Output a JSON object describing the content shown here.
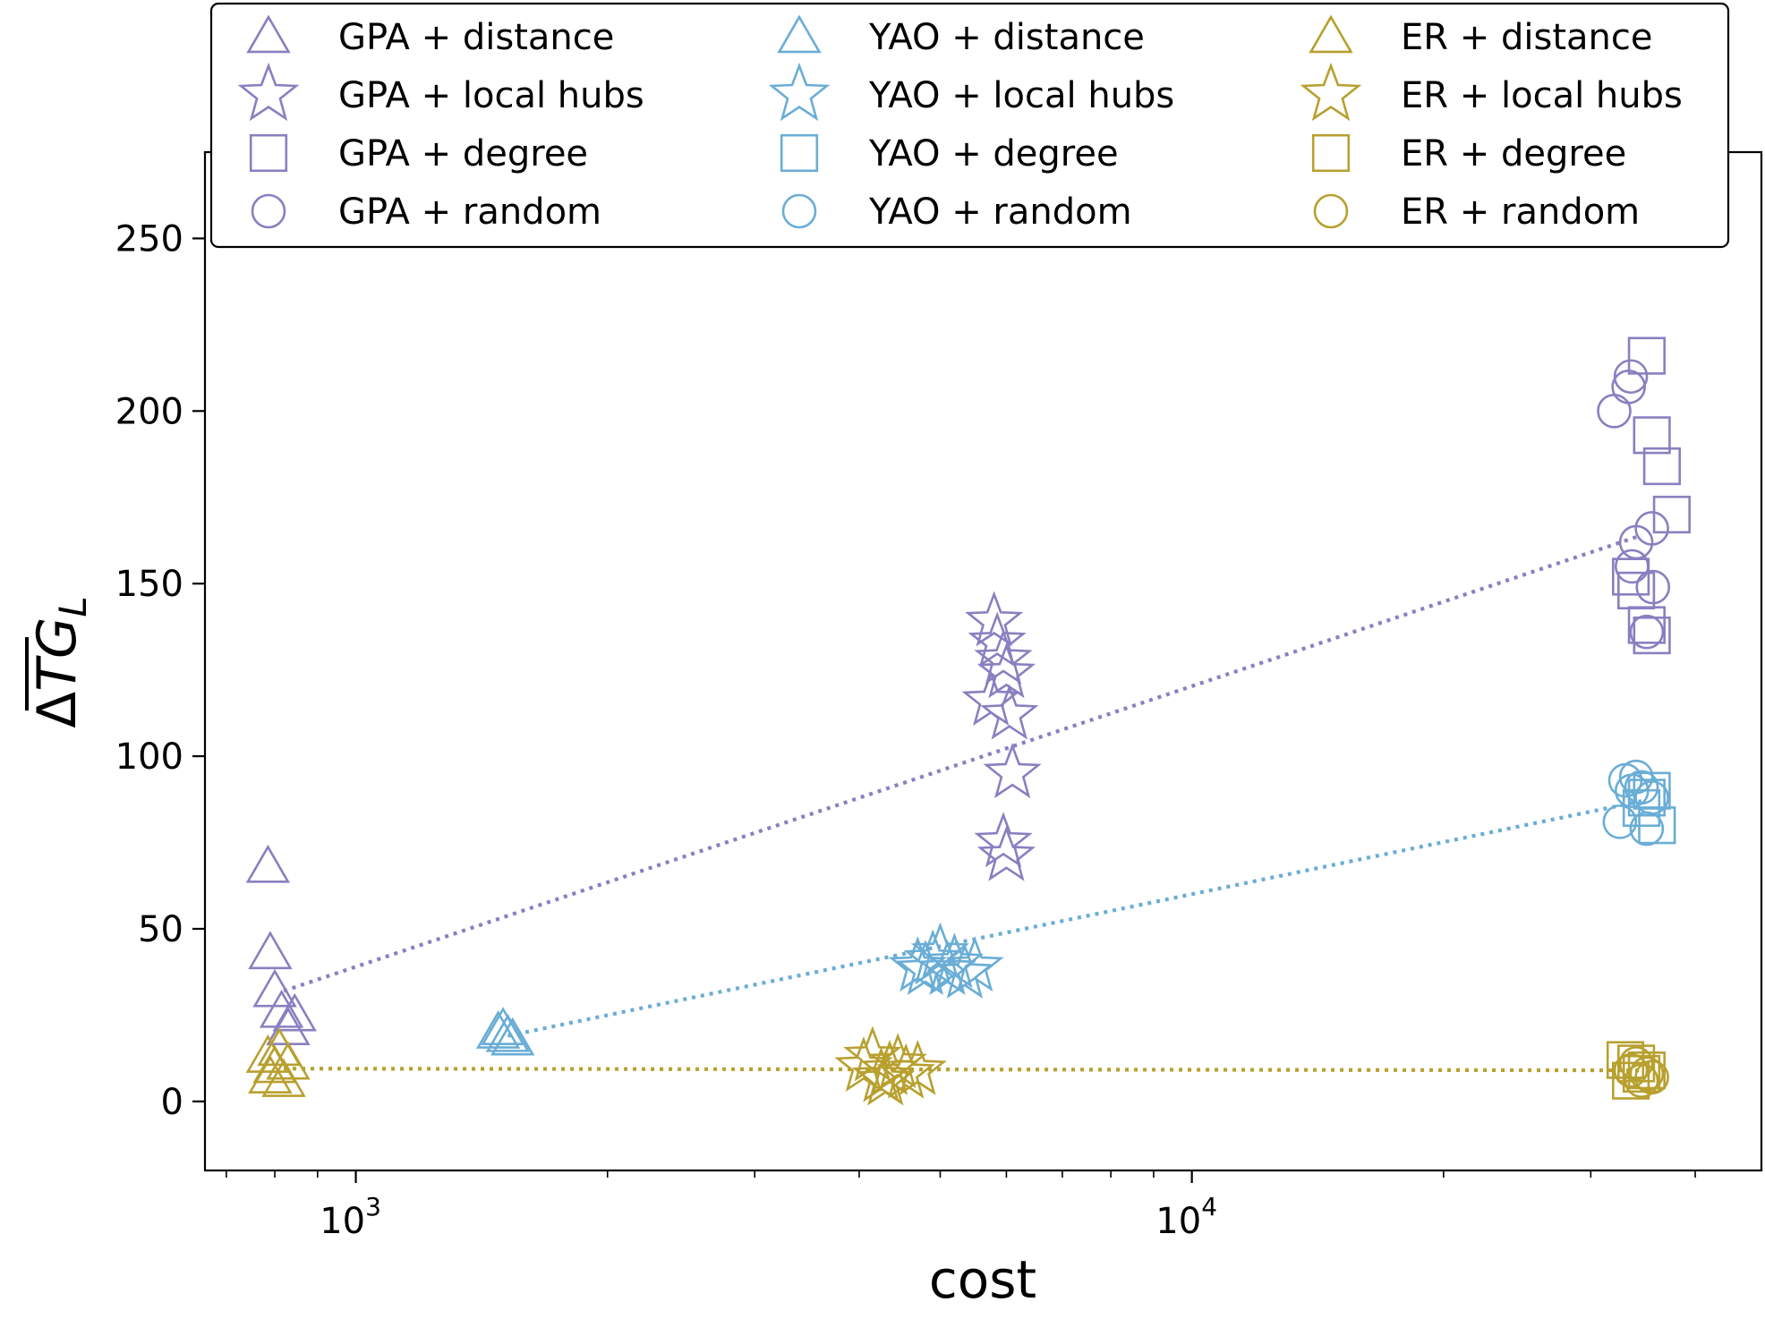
{
  "chart_data": {
    "type": "scatter",
    "xlabel": "cost",
    "ylabel": "ΔTG_L",
    "xscale": "log",
    "xlim": [
      660,
      48000
    ],
    "ylim": [
      -20,
      275
    ],
    "yticks": [
      0,
      50,
      100,
      150,
      200,
      250
    ],
    "xticks_major": [
      {
        "value": 1000,
        "label_base": "10",
        "label_exp": "3"
      },
      {
        "value": 10000,
        "label_base": "10",
        "label_exp": "4"
      }
    ],
    "grid": false,
    "legend": {
      "position": "top",
      "columns": 3
    },
    "colors": {
      "GPA": "#8a7fc0",
      "YAO": "#6aadd6",
      "ER": "#b8a02f"
    },
    "series": [
      {
        "name": "GPA + distance",
        "group": "GPA",
        "marker": "triangle",
        "points": [
          [
            785,
            67
          ],
          [
            790,
            42
          ],
          [
            800,
            31
          ],
          [
            815,
            25
          ],
          [
            830,
            20
          ],
          [
            845,
            24
          ]
        ]
      },
      {
        "name": "GPA + local hubs",
        "group": "GPA",
        "marker": "star",
        "points": [
          [
            5800,
            139
          ],
          [
            5850,
            133
          ],
          [
            5950,
            128
          ],
          [
            6000,
            124
          ],
          [
            5750,
            116
          ],
          [
            6050,
            112
          ],
          [
            6100,
            95
          ],
          [
            5950,
            75
          ],
          [
            6000,
            71
          ]
        ]
      },
      {
        "name": "GPA + degree",
        "group": "GPA",
        "marker": "square",
        "points": [
          [
            35000,
            216
          ],
          [
            35500,
            193
          ],
          [
            36500,
            184
          ],
          [
            37500,
            170
          ],
          [
            33500,
            152
          ],
          [
            34000,
            148
          ],
          [
            35000,
            138
          ],
          [
            35500,
            135
          ]
        ]
      },
      {
        "name": "GPA + random",
        "group": "GPA",
        "marker": "circle",
        "points": [
          [
            32000,
            200
          ],
          [
            33500,
            210
          ],
          [
            33300,
            207
          ],
          [
            34000,
            162
          ],
          [
            35500,
            166
          ],
          [
            33600,
            155
          ],
          [
            35600,
            149
          ],
          [
            35000,
            136
          ]
        ]
      },
      {
        "name": "YAO + distance",
        "group": "YAO",
        "marker": "triangle",
        "points": [
          [
            1480,
            19
          ],
          [
            1500,
            20
          ],
          [
            1520,
            18
          ],
          [
            1540,
            17
          ]
        ]
      },
      {
        "name": "YAO + local hubs",
        "group": "YAO",
        "marker": "star",
        "points": [
          [
            4700,
            39
          ],
          [
            4900,
            41
          ],
          [
            5000,
            43
          ],
          [
            5100,
            38
          ],
          [
            5200,
            40
          ],
          [
            5350,
            37
          ],
          [
            5500,
            39
          ],
          [
            4800,
            38
          ]
        ]
      },
      {
        "name": "YAO + degree",
        "group": "YAO",
        "marker": "square",
        "points": [
          [
            35500,
            90
          ],
          [
            36000,
            80
          ],
          [
            34500,
            85
          ],
          [
            35000,
            88
          ]
        ]
      },
      {
        "name": "YAO + random",
        "group": "YAO",
        "marker": "circle",
        "points": [
          [
            33000,
            93
          ],
          [
            34000,
            94
          ],
          [
            34500,
            91
          ],
          [
            35500,
            88
          ],
          [
            35000,
            79
          ],
          [
            32500,
            81
          ],
          [
            33600,
            90
          ]
        ]
      },
      {
        "name": "ER + distance",
        "group": "ER",
        "marker": "triangle",
        "points": [
          [
            785,
            12
          ],
          [
            790,
            6
          ],
          [
            800,
            9
          ],
          [
            810,
            14
          ],
          [
            820,
            5
          ],
          [
            830,
            10
          ]
        ]
      },
      {
        "name": "ER + local hubs",
        "group": "ER",
        "marker": "star",
        "points": [
          [
            4050,
            10
          ],
          [
            4150,
            13
          ],
          [
            4250,
            7
          ],
          [
            4350,
            9
          ],
          [
            4450,
            11
          ],
          [
            4550,
            8
          ],
          [
            4700,
            9
          ],
          [
            4300,
            6
          ]
        ]
      },
      {
        "name": "ER + degree",
        "group": "ER",
        "marker": "square",
        "points": [
          [
            33000,
            12
          ],
          [
            34000,
            11
          ],
          [
            35000,
            9
          ],
          [
            34500,
            8
          ],
          [
            33500,
            6
          ]
        ]
      },
      {
        "name": "ER + random",
        "group": "ER",
        "marker": "circle",
        "points": [
          [
            33500,
            9
          ],
          [
            34500,
            6
          ],
          [
            35500,
            7
          ],
          [
            34000,
            11
          ],
          [
            35000,
            8
          ]
        ]
      }
    ],
    "trendlines": [
      {
        "group": "GPA",
        "x": [
          820,
          34500
        ],
        "y": [
          32,
          164
        ]
      },
      {
        "group": "YAO",
        "x": [
          1520,
          34500
        ],
        "y": [
          19,
          87
        ]
      },
      {
        "group": "ER",
        "x": [
          820,
          34500
        ],
        "y": [
          9.5,
          9
        ]
      }
    ]
  }
}
